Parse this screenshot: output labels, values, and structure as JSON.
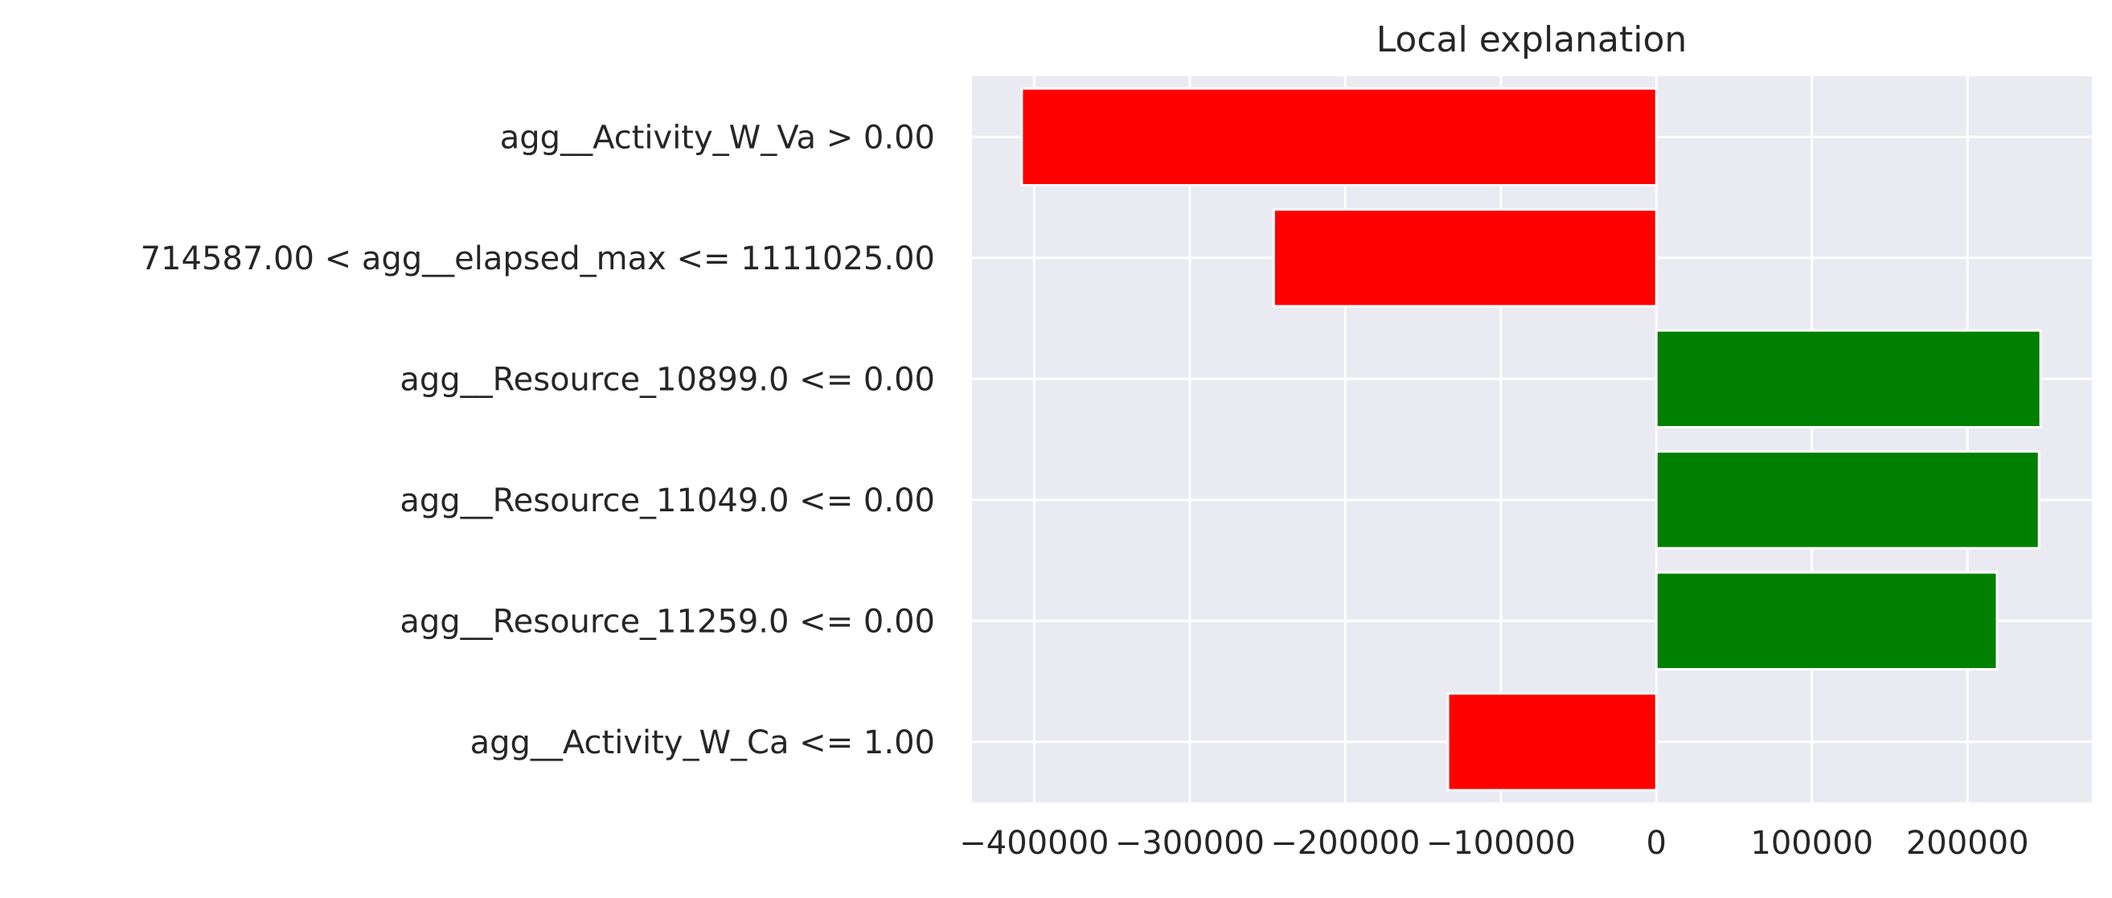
{
  "chart_data": {
    "type": "bar",
    "orientation": "horizontal",
    "title": "Local explanation",
    "xlabel": "",
    "ylabel": "",
    "xlim": [
      -440000,
      280000
    ],
    "x_ticks": [
      -400000,
      -300000,
      -200000,
      -100000,
      0,
      100000,
      200000
    ],
    "x_tick_labels": [
      "−400000",
      "−300000",
      "−200000",
      "−100000",
      "0",
      "100000",
      "200000"
    ],
    "categories": [
      "agg__Activity_W_Va > 0.00",
      "714587.00 < agg__elapsed_max <= 1111025.00",
      "agg__Resource_10899.0 <= 0.00",
      "agg__Resource_11049.0 <= 0.00",
      "agg__Resource_11259.0 <= 0.00",
      "agg__Activity_W_Ca <= 1.00"
    ],
    "values": [
      -408000,
      -246000,
      247000,
      246000,
      219000,
      -134000
    ],
    "positive_color": "#008000",
    "negative_color": "#ff0000",
    "background_color": "#eaeaf2",
    "grid": true,
    "grid_color": "#ffffff"
  }
}
